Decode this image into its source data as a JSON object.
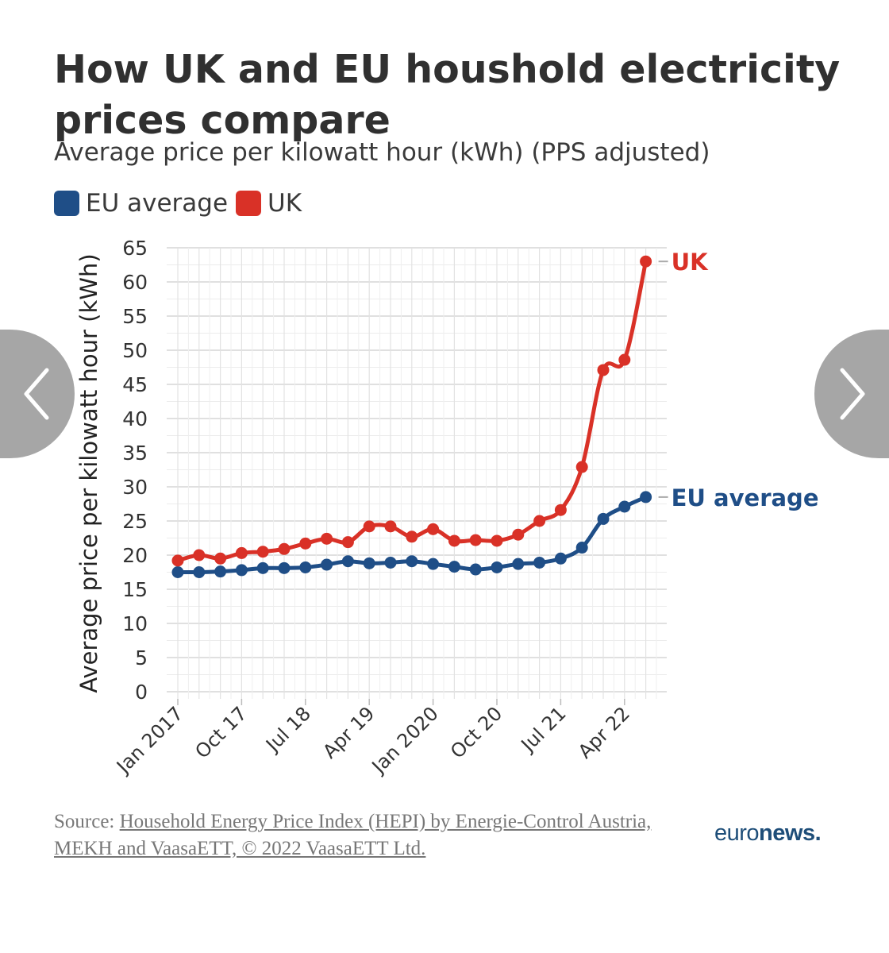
{
  "header": {
    "title": "How UK and EU houshold electricity prices compare",
    "subtitle": "Average price per kilowatt hour (kWh) (PPS adjusted)"
  },
  "legend": [
    {
      "label": "EU average",
      "color": "#1f4e87"
    },
    {
      "label": "UK",
      "color": "#d93127"
    }
  ],
  "source": {
    "prefix": "Source: ",
    "link_text": "Household Energy Price Index (HEPI) by Energie-Control Austria, MEKH and VaasaETT, © 2022 VaasaETT Ltd."
  },
  "brand": {
    "logo_prefix": "euro",
    "logo_suffix": "news."
  },
  "navigation": {
    "prev_icon": "chevron-left-icon",
    "next_icon": "chevron-right-icon"
  },
  "chart_data": {
    "type": "line",
    "title": "How UK and EU houshold electricity prices compare",
    "subtitle": "Average price per kilowatt hour (kWh) (PPS adjusted)",
    "ylabel": "Average price per kilowatt hour (kWh)",
    "xlabel": "",
    "ylim": [
      0,
      65
    ],
    "yticks": [
      0,
      5,
      10,
      15,
      20,
      25,
      30,
      35,
      40,
      45,
      50,
      55,
      60,
      65
    ],
    "grid": true,
    "legend_position": "top-left",
    "x": [
      "Jan 2017",
      "Apr 17",
      "Jul 17",
      "Oct 17",
      "Jan 18",
      "Apr 18",
      "Jul 18",
      "Oct 18",
      "Jan 19",
      "Apr 19",
      "Jul 19",
      "Oct 19",
      "Jan 2020",
      "Apr 20",
      "Jul 20",
      "Oct 20",
      "Jan 21",
      "Apr 21",
      "Jul 21",
      "Oct 21",
      "Jan 22",
      "Apr 22",
      "Jul 22"
    ],
    "x_tick_labels": [
      {
        "index": 0,
        "label": "Jan 2017"
      },
      {
        "index": 3,
        "label": "Oct 17"
      },
      {
        "index": 6,
        "label": "Jul 18"
      },
      {
        "index": 9,
        "label": "Apr 19"
      },
      {
        "index": 12,
        "label": "Jan 2020"
      },
      {
        "index": 15,
        "label": "Oct 20"
      },
      {
        "index": 18,
        "label": "Jul 21"
      },
      {
        "index": 21,
        "label": "Apr 22"
      }
    ],
    "series": [
      {
        "name": "EU average",
        "color": "#1f4e87",
        "end_label": "EU average",
        "values": [
          17.5,
          17.5,
          17.6,
          17.8,
          18.1,
          18.1,
          18.2,
          18.6,
          19.1,
          18.8,
          18.9,
          19.1,
          18.7,
          18.3,
          17.9,
          18.2,
          18.7,
          18.9,
          19.5,
          21.1,
          25.3,
          27.1,
          28.5
        ]
      },
      {
        "name": "UK",
        "color": "#d93127",
        "end_label": "UK",
        "values": [
          19.2,
          20.0,
          19.5,
          20.3,
          20.5,
          20.9,
          21.7,
          22.4,
          21.9,
          24.2,
          24.2,
          22.7,
          23.8,
          22.1,
          22.2,
          22.1,
          23.0,
          25.0,
          26.6,
          32.9,
          47.1,
          48.6,
          63.0
        ]
      }
    ]
  }
}
